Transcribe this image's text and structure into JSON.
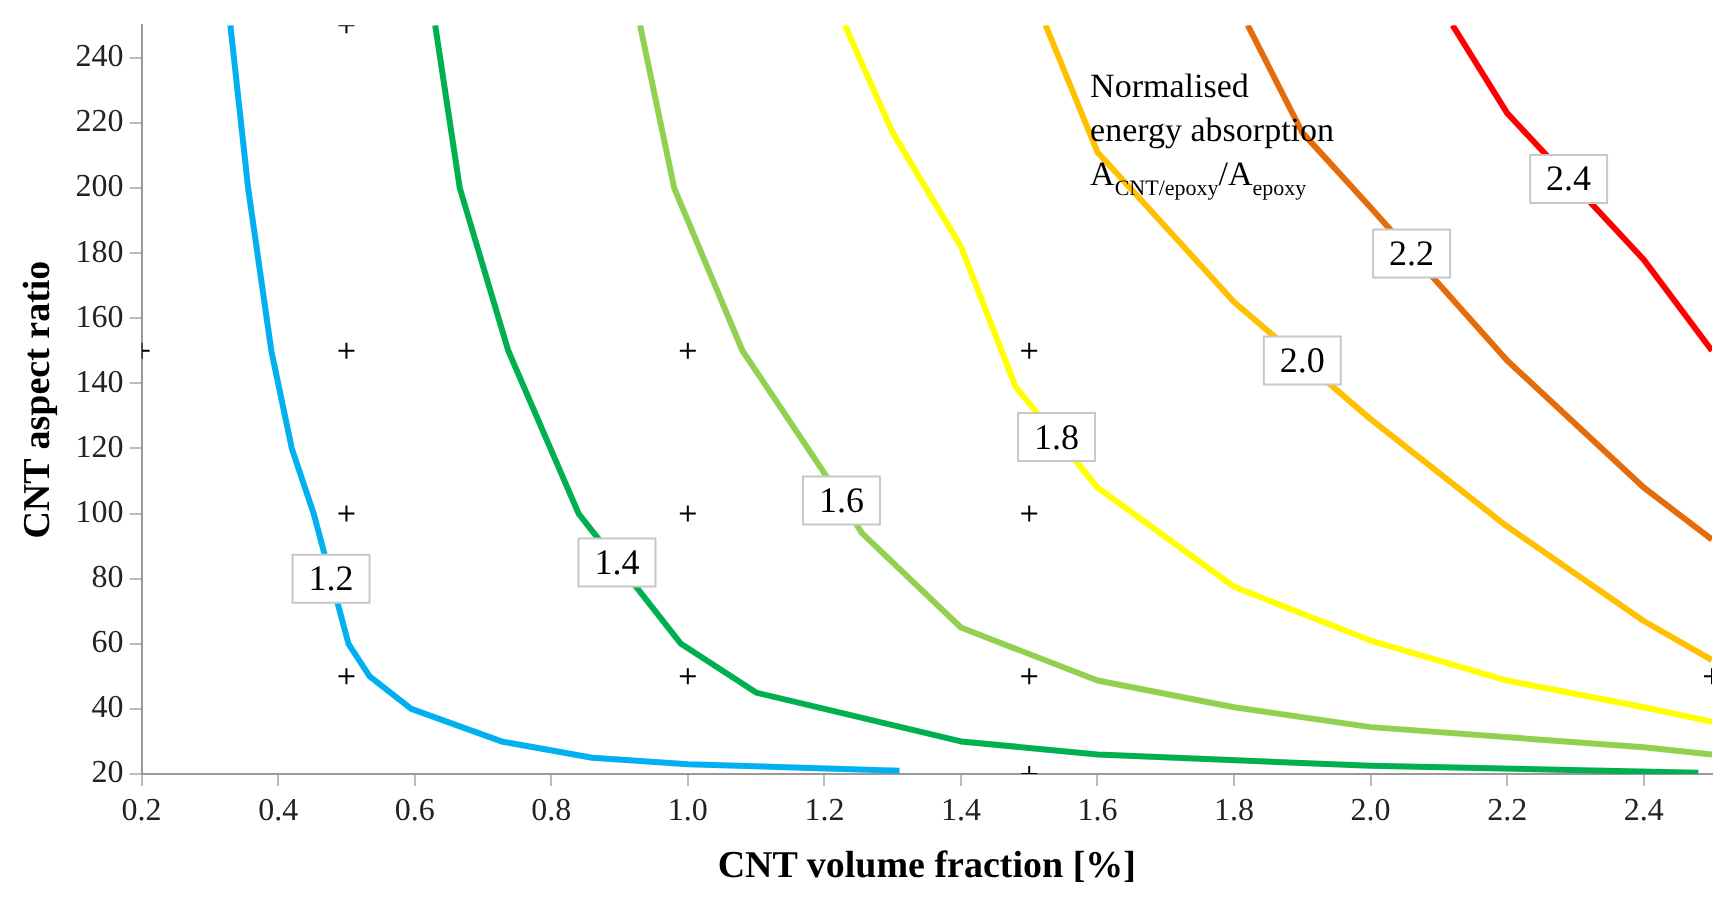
{
  "chart_data": {
    "type": "line",
    "xlabel": "CNT volume fraction [%]",
    "ylabel": "CNT aspect ratio",
    "xlim": [
      0.2,
      2.5
    ],
    "ylim": [
      20,
      250
    ],
    "xticks": [
      0.2,
      {
        "value": 0.4,
        "label": "0.4"
      },
      {
        "value": 0.6,
        "label": "0.6"
      },
      {
        "value": 0.8,
        "label": "0.8"
      },
      {
        "value": 1,
        "label": "1.0"
      },
      {
        "value": 1.2,
        "label": "1.2"
      },
      {
        "value": 1.4,
        "label": "1.4"
      },
      {
        "value": 1.6,
        "label": "1.6"
      },
      {
        "value": 1.8,
        "label": "1.8"
      },
      {
        "value": 2,
        "label": "2.0"
      },
      {
        "value": 2.2,
        "label": "2.2"
      },
      {
        "value": 2.4,
        "label": "2.4"
      }
    ],
    "yticks": [
      20,
      40,
      60,
      80,
      100,
      120,
      140,
      160,
      180,
      200,
      220,
      240
    ],
    "grid": false,
    "legend": false,
    "marker": "none",
    "line_style": "solid",
    "series": [
      {
        "color": "#00b0f0",
        "x": [
          0.33,
          0.356,
          0.39,
          0.42,
          0.452,
          0.503,
          0.534,
          0.595,
          0.727,
          0.86,
          1.0,
          1.31
        ],
        "values": [
          250,
          200,
          150,
          120,
          100,
          60,
          50,
          40,
          30,
          25,
          23,
          21
        ]
      },
      {
        "color": "#00b050",
        "x": [
          0.63,
          0.666,
          0.737,
          0.84,
          0.99,
          1.1,
          1.2,
          1.4,
          1.6,
          2.0,
          2.48
        ],
        "values": [
          250,
          200,
          150,
          100,
          60,
          45,
          40,
          30,
          26,
          22.5,
          20.4
        ]
      },
      {
        "color": "#92d050",
        "x": [
          0.93,
          0.98,
          1.08,
          1.195,
          1.255,
          1.4,
          1.6,
          1.8,
          2.0,
          2.4,
          2.5
        ],
        "values": [
          250,
          200,
          150,
          114,
          94,
          65,
          48.7,
          40.5,
          34.4,
          28.2,
          26
        ]
      },
      {
        "color": "#ffff00",
        "x": [
          1.23,
          1.3,
          1.4,
          1.48,
          1.6,
          1.8,
          2.0,
          2.2,
          2.4,
          2.5
        ],
        "values": [
          250,
          217,
          182,
          139,
          108,
          77.5,
          61,
          48.7,
          40.5,
          36
        ]
      },
      {
        "color": "#ffc000",
        "x": [
          1.524,
          1.6,
          1.8,
          2.0,
          2.2,
          2.4,
          2.5
        ],
        "values": [
          250,
          211,
          165,
          129,
          96,
          67,
          55
        ]
      },
      {
        "color": "#e46c0a",
        "x": [
          1.82,
          1.9,
          2.0,
          2.2,
          2.4,
          2.5
        ],
        "values": [
          250,
          217,
          194,
          147,
          108,
          92
        ]
      },
      {
        "color": "#ff0000",
        "x": [
          2.12,
          2.2,
          2.4,
          2.5
        ],
        "values": [
          250,
          223,
          178,
          150
        ]
      },
      {
        "type": "scatter",
        "color": "#000000",
        "marker": "cross",
        "x": [
          0.2,
          0.5,
          0.5,
          0.5,
          0.5,
          1.0,
          1.0,
          1.0,
          1.5,
          1.5,
          1.5,
          1.5,
          2.5
        ],
        "values": [
          150,
          250,
          150,
          100,
          50,
          150,
          100,
          50,
          150,
          100,
          50,
          20,
          50
        ]
      }
    ],
    "annotations": [
      {
        "text": "1.2",
        "x": 0.4775,
        "y": 80
      },
      {
        "text": "1.4",
        "x": 0.89625,
        "y": 85
      },
      {
        "text": "1.6",
        "x": 1.225,
        "y": 104
      },
      {
        "text": "1.8",
        "x": 1.54,
        "y": 123.5
      },
      {
        "text": "2.0",
        "x": 1.9,
        "y": 147
      },
      {
        "text": "2.2",
        "x": 2.06,
        "y": 179.9
      },
      {
        "text": "2.4",
        "x": 2.29,
        "y": 202.75
      },
      "Normalised energy absorption A$_{CNT/epoxy}$/A$_{epoxy}$"
    ]
  }
}
